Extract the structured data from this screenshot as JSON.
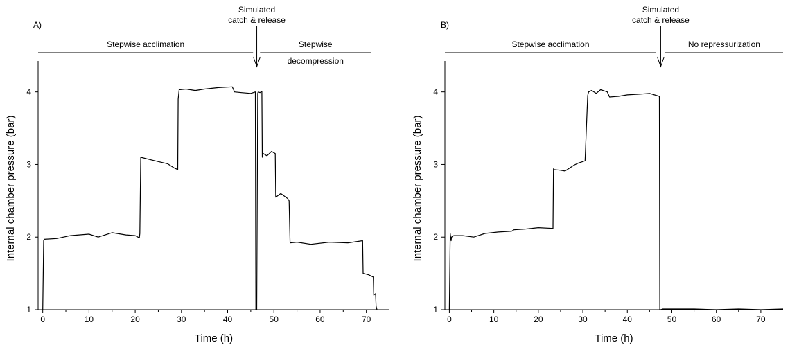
{
  "chart_data": [
    {
      "type": "line",
      "panel_label": "A)",
      "xlabel": "Time (h)",
      "ylabel": "Internal chamber pressure (bar)",
      "xlim": [
        -1,
        75
      ],
      "ylim": [
        1,
        4.35
      ],
      "xticks": [
        0,
        10,
        20,
        30,
        40,
        50,
        60,
        70
      ],
      "yticks": [
        1,
        2,
        3,
        4
      ],
      "grid": false,
      "phases": [
        {
          "label": "Stepwise acclimation",
          "x_start": -1,
          "x_end": 45.5
        },
        {
          "label": "Stepwise",
          "label2": "decompression",
          "x_start": 47,
          "x_end": 71
        }
      ],
      "event": {
        "label": "Simulated",
        "label2": "catch & release",
        "x": 46.3
      },
      "series": [
        {
          "x": [
            0,
            0.2,
            0.3,
            3,
            6,
            10,
            12,
            15,
            18,
            20,
            20.9,
            21,
            21.2,
            23,
            25,
            27,
            28.5,
            29.2,
            29.3,
            29.5,
            31,
            33,
            35,
            38,
            41,
            41.5,
            43,
            45,
            46.0,
            46.1,
            46.3,
            46.5,
            46.6,
            47.0,
            47.4,
            47.5,
            47.7,
            48.5,
            49.5,
            50.3,
            50.4,
            51.5,
            53.0,
            53.3,
            53.5,
            55,
            58,
            62,
            66,
            69.2,
            69.3,
            70.5,
            71.5,
            71.6,
            72.0,
            72.1,
            72.3
          ],
          "y": [
            1.0,
            1.95,
            1.97,
            1.98,
            2.02,
            2.04,
            2.0,
            2.06,
            2.03,
            2.02,
            1.99,
            2.05,
            3.1,
            3.07,
            3.04,
            3.01,
            2.95,
            2.93,
            3.9,
            4.03,
            4.04,
            4.02,
            4.04,
            4.06,
            4.07,
            4.0,
            3.99,
            3.98,
            4.0,
            1.0,
            1.0,
            3.98,
            4.0,
            3.99,
            4.01,
            3.1,
            3.15,
            3.12,
            3.18,
            3.15,
            2.55,
            2.6,
            2.53,
            2.5,
            1.92,
            1.93,
            1.9,
            1.93,
            1.92,
            1.95,
            1.5,
            1.48,
            1.45,
            1.2,
            1.22,
            1.05,
            1.0
          ]
        }
      ]
    },
    {
      "type": "line",
      "panel_label": "B)",
      "xlabel": "Time (h)",
      "ylabel": "Internal chamber pressure (bar)",
      "xlim": [
        -1,
        75
      ],
      "ylim": [
        1,
        4.35
      ],
      "xticks": [
        0,
        10,
        20,
        30,
        40,
        50,
        60,
        70
      ],
      "yticks": [
        1,
        2,
        3,
        4
      ],
      "grid": false,
      "phases": [
        {
          "label": "Stepwise acclimation",
          "x_start": -1,
          "x_end": 46.5
        },
        {
          "label": "No repressurization",
          "x_start": 48.5,
          "x_end": 75
        }
      ],
      "event": {
        "label": "Simulated",
        "label2": "catch & release",
        "x": 47.5
      },
      "series": [
        {
          "x": [
            0,
            0.2,
            0.4,
            0.5,
            1,
            3,
            5.5,
            8,
            11,
            14,
            14.5,
            17,
            20,
            23.3,
            23.4,
            23.5,
            25,
            26,
            27,
            28,
            29,
            30.5,
            31.1,
            31.3,
            32,
            33,
            34,
            35.5,
            36,
            38,
            40,
            43,
            45,
            47.2,
            47.3,
            47.5,
            48,
            55,
            60,
            65,
            70,
            75
          ],
          "y": [
            1.0,
            2.05,
            1.95,
            2.0,
            2.02,
            2.02,
            2.0,
            2.05,
            2.07,
            2.08,
            2.1,
            2.11,
            2.13,
            2.12,
            2.94,
            2.93,
            2.92,
            2.91,
            2.95,
            2.99,
            3.02,
            3.05,
            3.95,
            4.0,
            4.02,
            3.98,
            4.03,
            4.0,
            3.93,
            3.94,
            3.96,
            3.97,
            3.98,
            3.94,
            1.0,
            1.0,
            1.01,
            1.01,
            1.0,
            1.01,
            1.0,
            1.01
          ]
        }
      ]
    }
  ]
}
